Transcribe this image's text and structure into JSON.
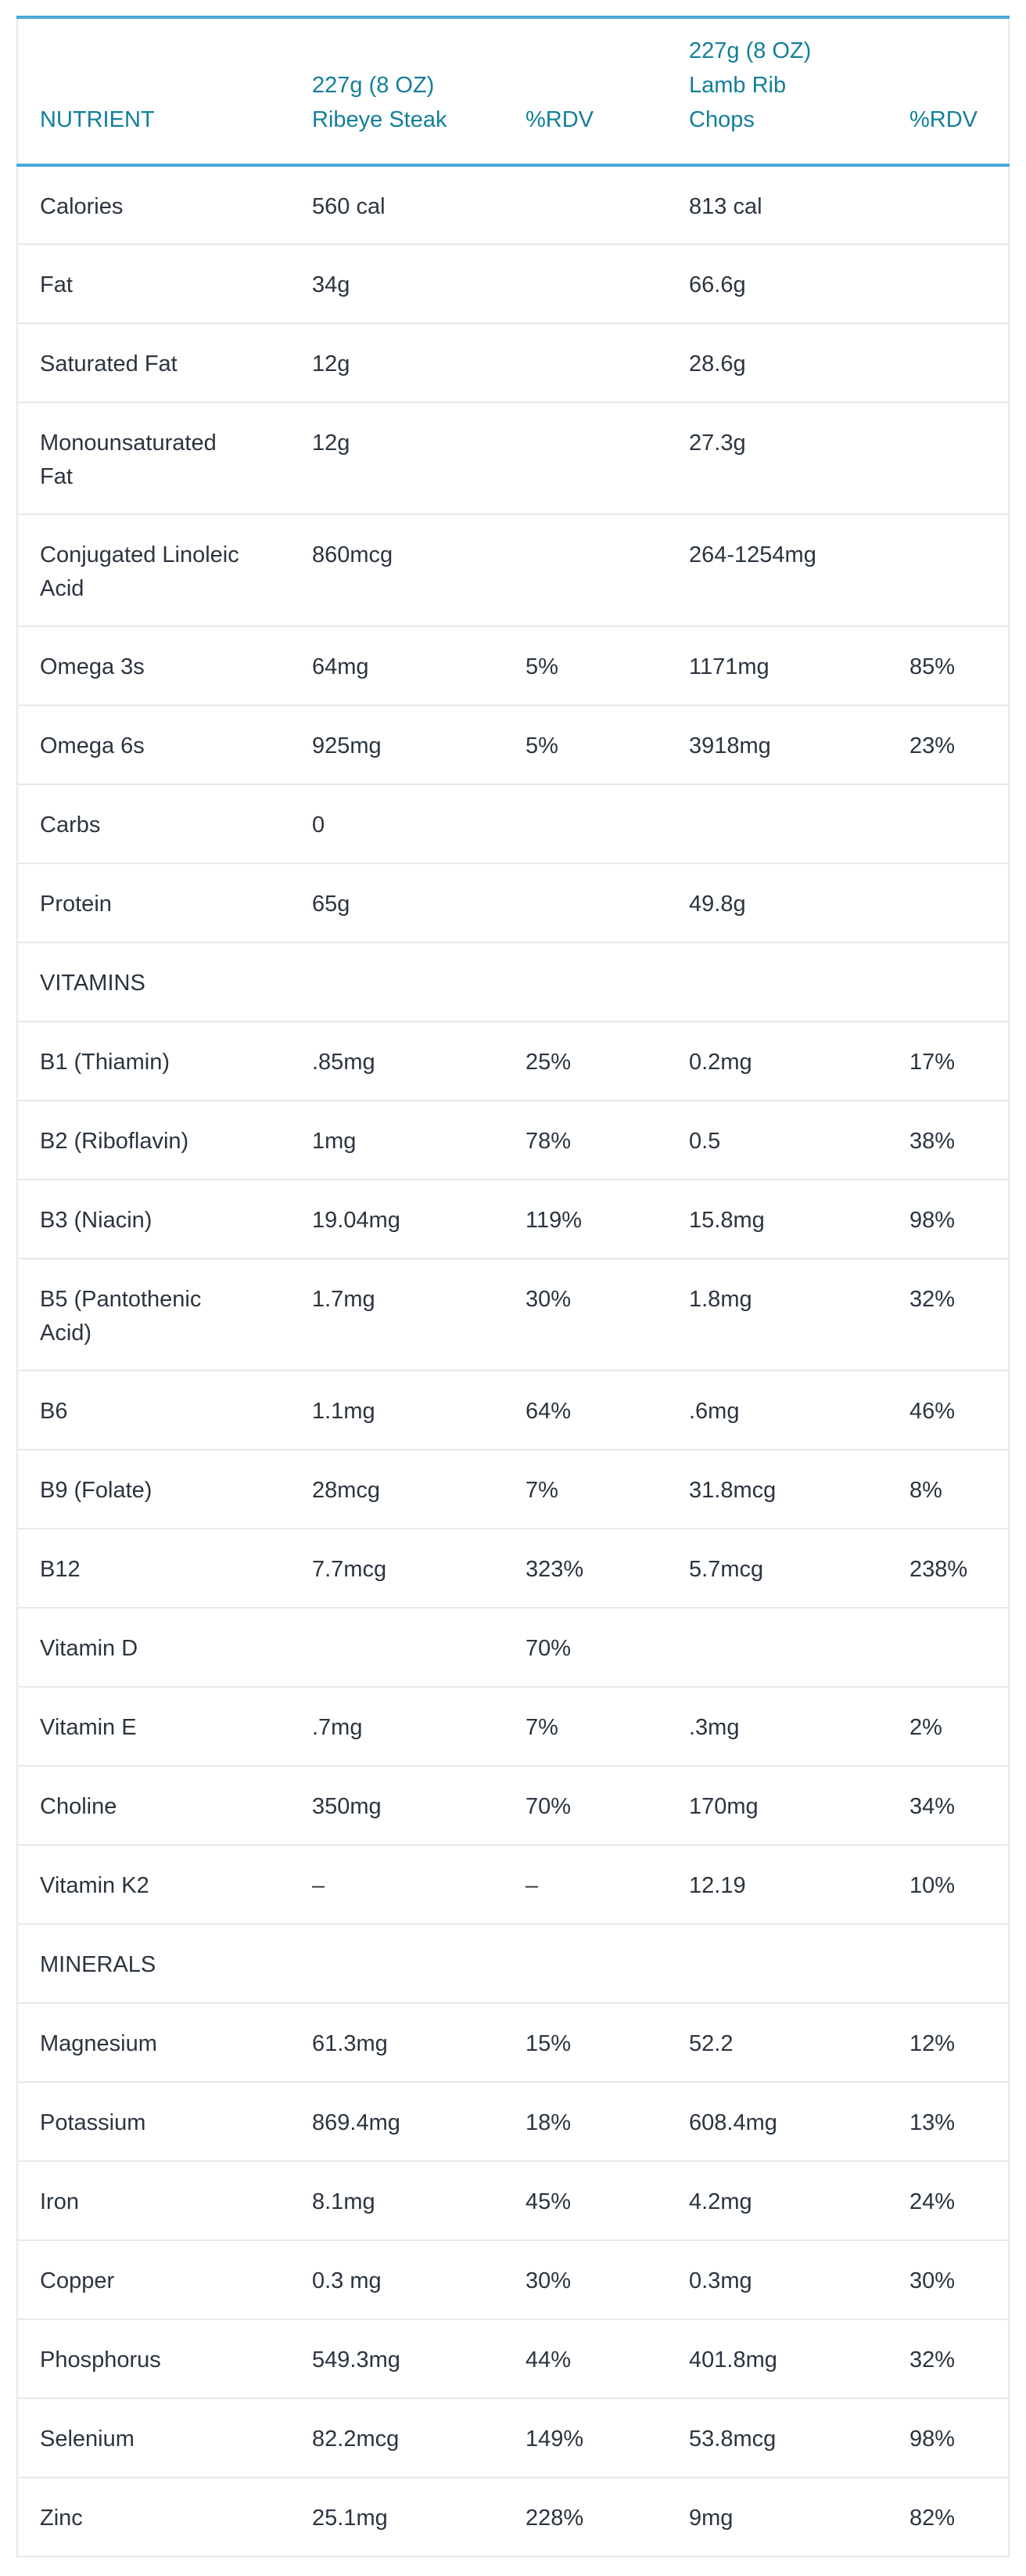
{
  "header": {
    "nutrient": "NUTRIENT",
    "food1": [
      "227g (8 OZ)",
      "Ribeye Steak"
    ],
    "rdv1": "%RDV",
    "food2": [
      "227g (8 OZ)",
      "Lamb Rib",
      "Chops"
    ],
    "rdv2": "%RDV"
  },
  "rows": [
    {
      "name": [
        "Calories"
      ],
      "v1": "560 cal",
      "r1": "",
      "v2": "813 cal",
      "r2": ""
    },
    {
      "name": [
        "Fat"
      ],
      "v1": "34g",
      "r1": "",
      "v2": "66.6g",
      "r2": ""
    },
    {
      "name": [
        "Saturated Fat"
      ],
      "v1": "12g",
      "r1": "",
      "v2": "28.6g",
      "r2": ""
    },
    {
      "name": [
        "Monounsaturated",
        "Fat"
      ],
      "v1": "12g",
      "r1": "",
      "v2": "27.3g",
      "r2": ""
    },
    {
      "name": [
        "Conjugated Linoleic",
        "Acid"
      ],
      "v1": "860mcg",
      "r1": "",
      "v2": "264-1254mg",
      "r2": ""
    },
    {
      "name": [
        "Omega 3s"
      ],
      "v1": "64mg",
      "r1": "5%",
      "v2": "1171mg",
      "r2": "85%"
    },
    {
      "name": [
        "Omega 6s"
      ],
      "v1": "925mg",
      "r1": "5%",
      "v2": "3918mg",
      "r2": "23%"
    },
    {
      "name": [
        "Carbs"
      ],
      "v1": "0",
      "r1": "",
      "v2": "",
      "r2": ""
    },
    {
      "name": [
        "Protein"
      ],
      "v1": "65g",
      "r1": "",
      "v2": "49.8g",
      "r2": ""
    },
    {
      "name": [
        "VITAMINS"
      ],
      "v1": "",
      "r1": "",
      "v2": "",
      "r2": ""
    },
    {
      "name": [
        "B1 (Thiamin)"
      ],
      "v1": ".85mg",
      "r1": "25%",
      "v2": "0.2mg",
      "r2": "17%"
    },
    {
      "name": [
        "B2 (Riboflavin)"
      ],
      "v1": "1mg",
      "r1": "78%",
      "v2": "0.5",
      "r2": "38%"
    },
    {
      "name": [
        "B3 (Niacin)"
      ],
      "v1": "19.04mg",
      "r1": "119%",
      "v2": "15.8mg",
      "r2": "98%"
    },
    {
      "name": [
        "B5 (Pantothenic",
        "Acid)"
      ],
      "v1": "1.7mg",
      "r1": "30%",
      "v2": "1.8mg",
      "r2": "32%"
    },
    {
      "name": [
        "B6"
      ],
      "v1": "1.1mg",
      "r1": "64%",
      "v2": ".6mg",
      "r2": "46%"
    },
    {
      "name": [
        "B9 (Folate)"
      ],
      "v1": "28mcg",
      "r1": "7%",
      "v2": "31.8mcg",
      "r2": "8%"
    },
    {
      "name": [
        "B12"
      ],
      "v1": "7.7mcg",
      "r1": "323%",
      "v2": "5.7mcg",
      "r2": "238%"
    },
    {
      "name": [
        "Vitamin D"
      ],
      "v1": "",
      "r1": "70%",
      "v2": "",
      "r2": ""
    },
    {
      "name": [
        "Vitamin E"
      ],
      "v1": ".7mg",
      "r1": "7%",
      "v2": ".3mg",
      "r2": "2%"
    },
    {
      "name": [
        "Choline"
      ],
      "v1": "350mg",
      "r1": "70%",
      "v2": "170mg",
      "r2": "34%"
    },
    {
      "name": [
        "Vitamin K2"
      ],
      "v1": "–",
      "r1": "–",
      "v2": "12.19",
      "r2": "10%"
    },
    {
      "name": [
        "MINERALS"
      ],
      "v1": "",
      "r1": "",
      "v2": "",
      "r2": ""
    },
    {
      "name": [
        "Magnesium"
      ],
      "v1": "61.3mg",
      "r1": "15%",
      "v2": "52.2",
      "r2": "12%"
    },
    {
      "name": [
        "Potassium"
      ],
      "v1": "869.4mg",
      "r1": "18%",
      "v2": "608.4mg",
      "r2": "13%"
    },
    {
      "name": [
        "Iron"
      ],
      "v1": "8.1mg",
      "r1": "45%",
      "v2": "4.2mg",
      "r2": "24%"
    },
    {
      "name": [
        "Copper"
      ],
      "v1": "0.3 mg",
      "r1": "30%",
      "v2": "0.3mg",
      "r2": "30%"
    },
    {
      "name": [
        "Phosphorus"
      ],
      "v1": "549.3mg",
      "r1": "44%",
      "v2": "401.8mg",
      "r2": "32%"
    },
    {
      "name": [
        "Selenium"
      ],
      "v1": "82.2mcg",
      "r1": "149%",
      "v2": "53.8mcg",
      "r2": "98%"
    },
    {
      "name": [
        "Zinc"
      ],
      "v1": "25.1mg",
      "r1": "228%",
      "v2": "9mg",
      "r2": "82%"
    }
  ]
}
